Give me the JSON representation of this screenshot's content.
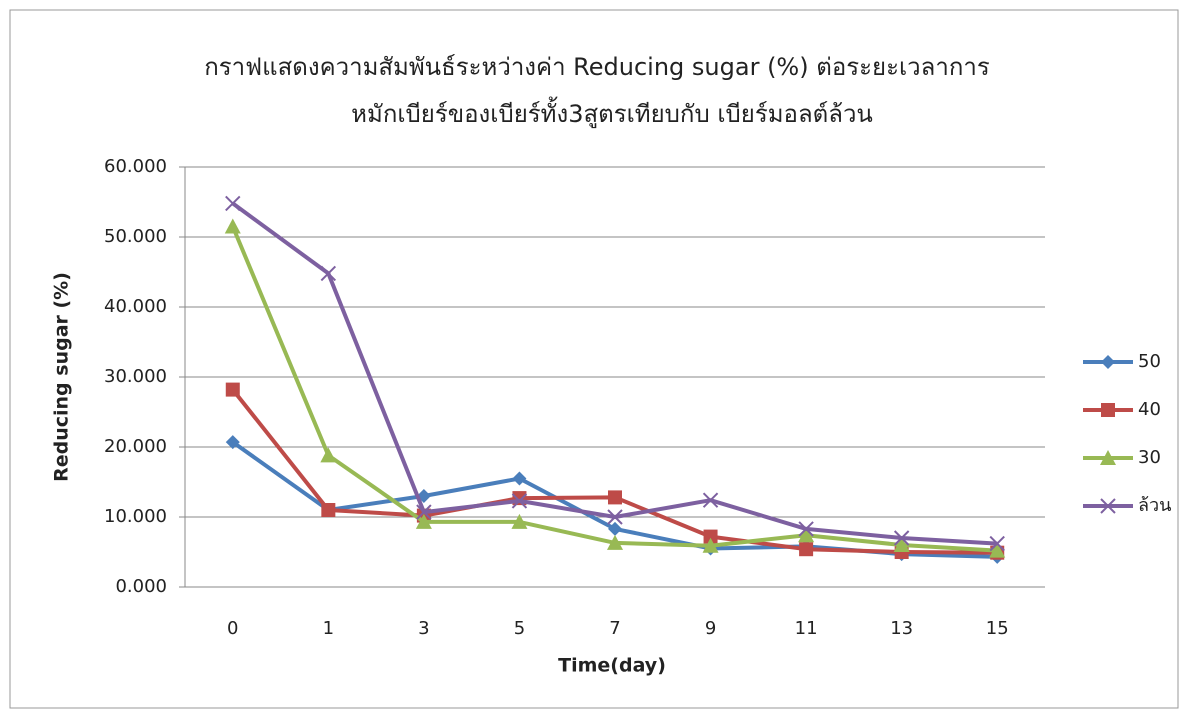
{
  "chart_data": {
    "type": "line",
    "title": [
      "กราฟแสดงความสัมพันธ์ระหว่างค่า Reducing sugar (%) ต่อระยะเวลาการ",
      "หมักเบียร์ของเบียร์ทั้ง3สูตรเทียบกับ เบียร์มอลต์ล้วน"
    ],
    "x_label": "Time(day)",
    "y_label": "Reducing sugar (%)",
    "categories": [
      "0",
      "1",
      "3",
      "5",
      "7",
      "9",
      "11",
      "13",
      "15"
    ],
    "series": [
      {
        "name": "50",
        "color": "#4a7ebb",
        "marker": "diamond",
        "values": [
          20.7,
          11.0,
          13.0,
          15.5,
          8.3,
          5.5,
          5.8,
          4.7,
          4.3
        ]
      },
      {
        "name": "40",
        "color": "#be4b48",
        "marker": "square",
        "values": [
          28.2,
          11.0,
          10.2,
          12.7,
          12.8,
          7.2,
          5.4,
          5.0,
          4.9
        ]
      },
      {
        "name": "30",
        "color": "#98b954",
        "marker": "triangle",
        "values": [
          51.5,
          18.8,
          9.3,
          9.3,
          6.3,
          5.9,
          7.4,
          6.0,
          5.2
        ]
      },
      {
        "name": "ล้วน",
        "color": "#7d60a0",
        "marker": "x",
        "values": [
          54.8,
          44.8,
          10.7,
          12.3,
          10.0,
          12.4,
          8.3,
          7.0,
          6.2
        ]
      }
    ],
    "ylim": [
      0,
      60
    ],
    "yticks": [
      {
        "value": 0,
        "label": "0.000"
      },
      {
        "value": 10,
        "label": "10.000"
      },
      {
        "value": 20,
        "label": "20.000"
      },
      {
        "value": 30,
        "label": "30.000"
      },
      {
        "value": 40,
        "label": "40.000"
      },
      {
        "value": 50,
        "label": "50.000"
      },
      {
        "value": 60,
        "label": "60.000"
      }
    ],
    "grid": true,
    "legend": "right"
  }
}
